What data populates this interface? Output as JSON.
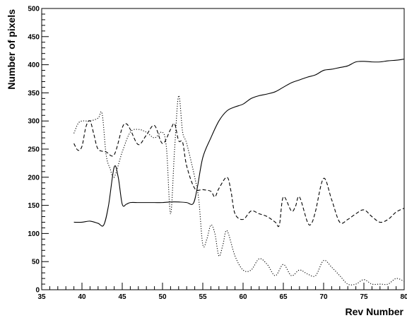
{
  "chart_data": {
    "type": "line",
    "title": "",
    "xlabel": "Rev Number",
    "ylabel": "Number of pixels",
    "xlim": [
      35,
      80
    ],
    "ylim": [
      0,
      500
    ],
    "grid": false,
    "legend": "none",
    "x_ticks": [
      "35",
      "40",
      "45",
      "50",
      "55",
      "60",
      "65",
      "70",
      "75",
      "80"
    ],
    "y_ticks": [
      "0",
      "50",
      "100",
      "150",
      "200",
      "250",
      "300",
      "350",
      "400",
      "450",
      "500"
    ],
    "series": [
      {
        "style": "solid",
        "color": "#000000",
        "x": [
          39,
          40,
          41,
          42,
          42.7,
          43.3,
          44,
          44.5,
          45,
          45.5,
          46,
          47,
          48,
          49,
          50,
          51,
          52,
          53,
          53.8,
          54.3,
          55,
          56,
          57,
          58,
          59,
          60,
          61,
          62,
          63,
          64,
          65,
          66,
          67,
          68,
          69,
          70,
          71,
          72,
          73,
          74,
          75,
          76,
          77,
          78,
          79,
          80
        ],
        "y": [
          120,
          120,
          122,
          118,
          115,
          150,
          218,
          200,
          152,
          152,
          155,
          155,
          155,
          155,
          155,
          156,
          156,
          155,
          153,
          180,
          235,
          270,
          300,
          318,
          325,
          330,
          340,
          345,
          348,
          352,
          360,
          368,
          373,
          378,
          382,
          390,
          392,
          395,
          398,
          405,
          406,
          405,
          405,
          407,
          408,
          410
        ]
      },
      {
        "style": "dashed",
        "color": "#000000",
        "x": [
          39,
          39.5,
          40,
          40.5,
          41,
          41.5,
          42,
          43,
          44,
          45,
          45.5,
          46,
          47,
          48,
          49,
          50,
          51,
          51.5,
          52,
          52.5,
          53,
          54,
          55,
          56,
          56.5,
          57,
          58,
          58.5,
          59,
          60,
          61,
          62,
          63,
          64,
          64.5,
          65,
          66,
          66.5,
          67,
          68,
          68.5,
          69,
          70,
          71,
          72,
          73,
          74,
          75,
          76,
          77,
          78,
          79,
          80
        ],
        "y": [
          260,
          248,
          255,
          290,
          300,
          275,
          250,
          245,
          240,
          288,
          295,
          285,
          258,
          275,
          292,
          260,
          285,
          295,
          265,
          262,
          220,
          180,
          178,
          175,
          165,
          180,
          200,
          175,
          135,
          125,
          140,
          135,
          130,
          120,
          115,
          165,
          140,
          148,
          165,
          120,
          118,
          140,
          198,
          160,
          120,
          125,
          135,
          142,
          130,
          120,
          125,
          138,
          145
        ]
      },
      {
        "style": "dotted",
        "color": "#000000",
        "x": [
          39,
          39.5,
          40,
          41,
          42,
          42.5,
          43,
          43.5,
          44,
          45,
          46,
          47,
          48,
          49,
          50,
          50.5,
          51,
          51.5,
          52,
          52.5,
          53,
          54,
          54.5,
          55,
          55.5,
          56,
          56.5,
          57,
          57.5,
          58,
          59,
          60,
          61,
          62,
          63,
          64,
          65,
          66,
          67,
          68,
          69,
          70,
          71,
          72,
          73,
          74,
          75,
          76,
          77,
          78,
          79,
          80
        ],
        "y": [
          278,
          295,
          300,
          300,
          305,
          313,
          240,
          215,
          200,
          245,
          280,
          285,
          280,
          270,
          280,
          250,
          135,
          250,
          345,
          280,
          260,
          200,
          160,
          80,
          90,
          115,
          100,
          60,
          80,
          105,
          60,
          35,
          35,
          55,
          45,
          25,
          45,
          25,
          35,
          28,
          25,
          52,
          40,
          25,
          10,
          10,
          18,
          10,
          10,
          10,
          20,
          15
        ]
      }
    ]
  }
}
